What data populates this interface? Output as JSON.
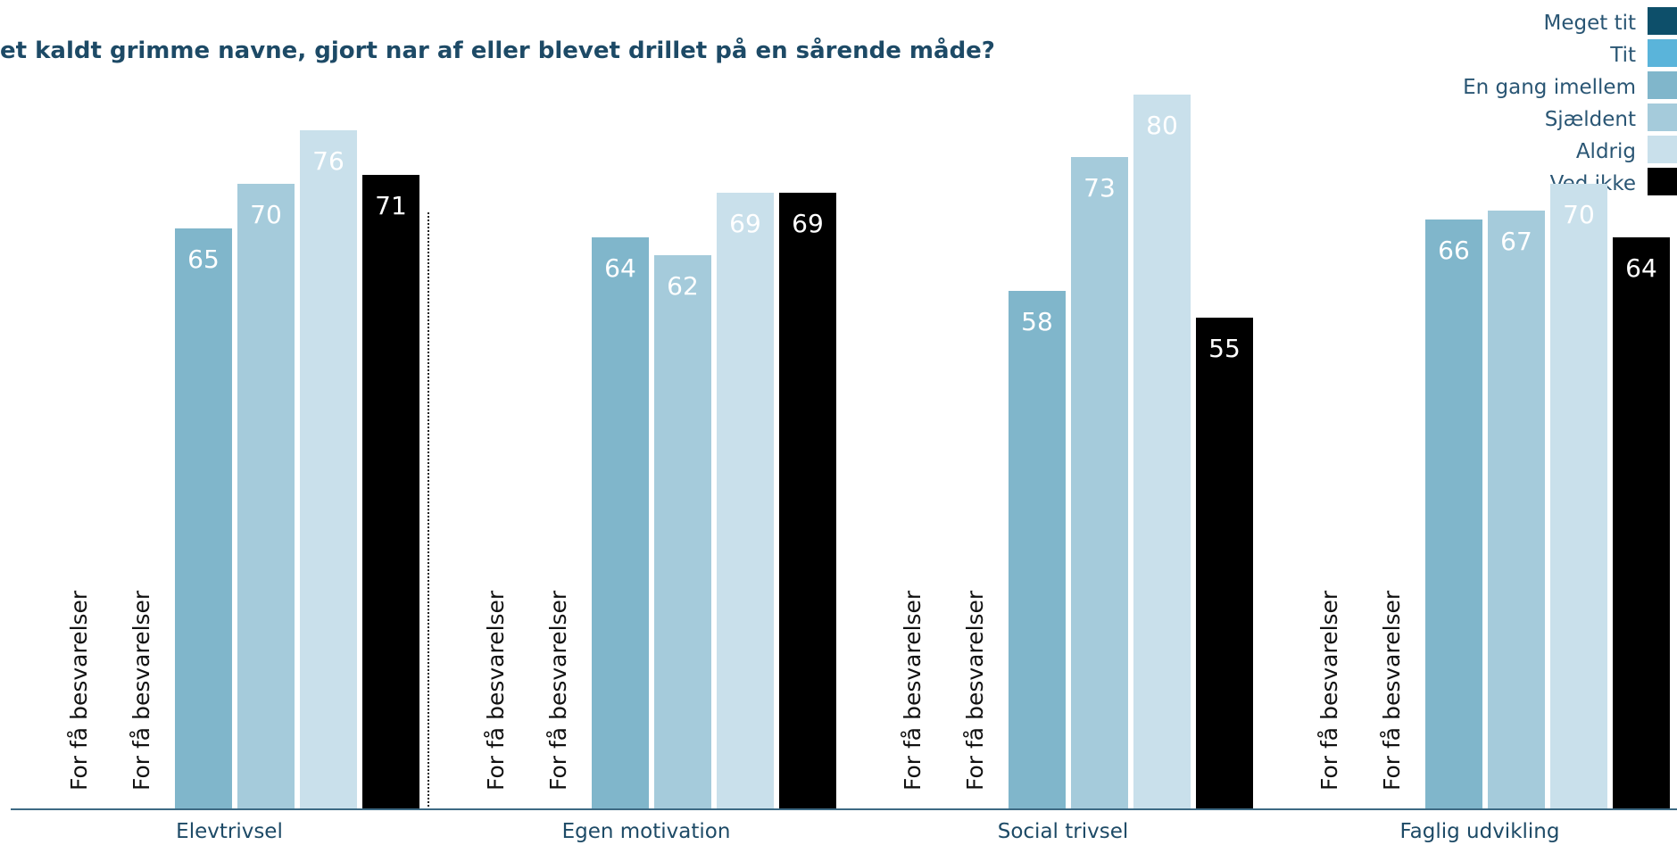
{
  "chart_data": {
    "type": "bar",
    "title": "et kaldt grimme navne, gjort nar af eller blevet drillet på en sårende måde?",
    "xlabel": "",
    "ylabel": "",
    "ylim": [
      0,
      100
    ],
    "legend_position": "top-right",
    "categories": [
      "Elevtrivsel",
      "Egen motivation",
      "Social trivsel",
      "Faglig udvikling"
    ],
    "insufficient_label": "For få besvarelser",
    "series": [
      {
        "name": "Meget tit",
        "color": "#0d4f6a",
        "values": [
          null,
          null,
          null,
          null
        ]
      },
      {
        "name": "Tit",
        "color": "#5ab4da",
        "values": [
          null,
          null,
          null,
          null
        ]
      },
      {
        "name": "En gang imellem",
        "color": "#80b6cb",
        "values": [
          65,
          64,
          58,
          66
        ]
      },
      {
        "name": "Sjældent",
        "color": "#a5cbdb",
        "values": [
          70,
          62,
          73,
          67
        ]
      },
      {
        "name": "Aldrig",
        "color": "#c9e0eb",
        "values": [
          76,
          69,
          80,
          70
        ]
      },
      {
        "name": "Ved ikke",
        "color": "#000000",
        "values": [
          71,
          69,
          55,
          64
        ]
      }
    ]
  }
}
